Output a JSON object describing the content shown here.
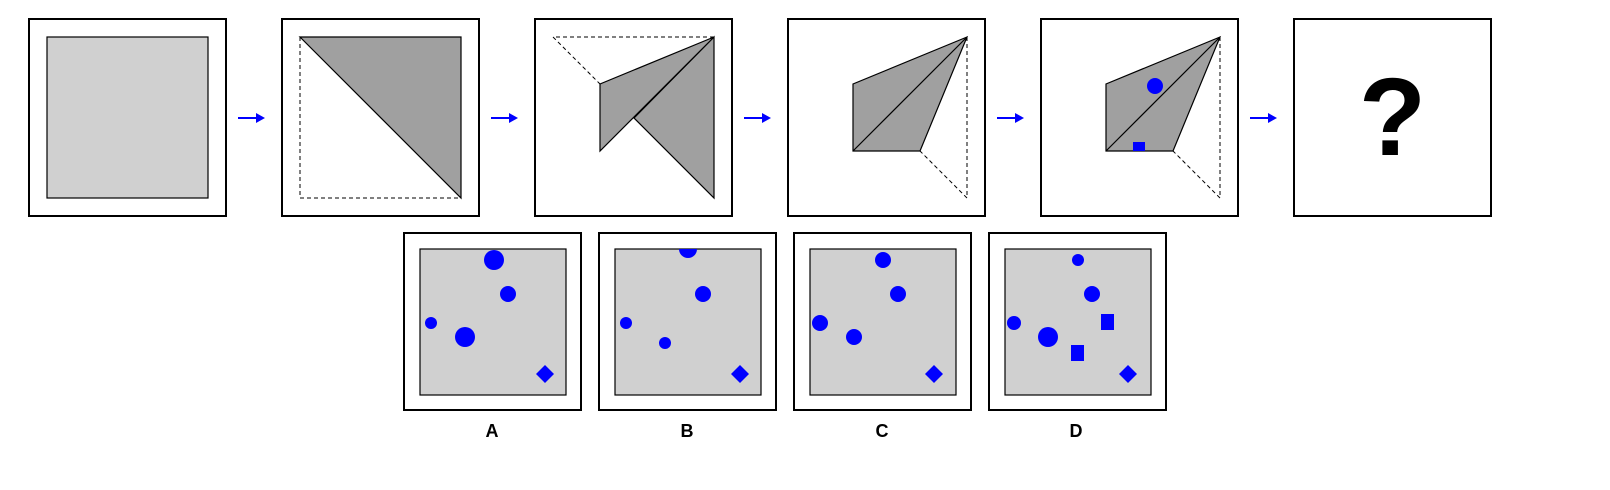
{
  "sequence": {
    "question_mark": "?"
  },
  "options": [
    {
      "label": "A"
    },
    {
      "label": "B"
    },
    {
      "label": "C"
    },
    {
      "label": "D"
    }
  ],
  "colors": {
    "paper": "#d0d0d0",
    "fold": "#a0a0a0",
    "marks": "#0000ff",
    "outline": "#000000"
  },
  "icons": {
    "arrow": "right-arrow-icon",
    "circle": "circle-dot-icon",
    "square": "square-dot-icon",
    "diamond": "diamond-dot-icon"
  }
}
